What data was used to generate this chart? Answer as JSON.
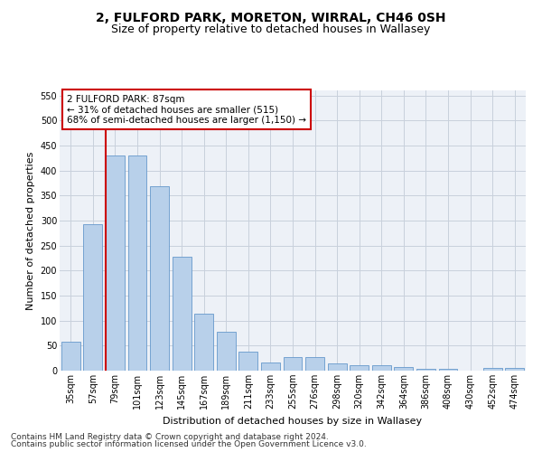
{
  "title": "2, FULFORD PARK, MORETON, WIRRAL, CH46 0SH",
  "subtitle": "Size of property relative to detached houses in Wallasey",
  "xlabel": "Distribution of detached houses by size in Wallasey",
  "ylabel": "Number of detached properties",
  "categories": [
    "35sqm",
    "57sqm",
    "79sqm",
    "101sqm",
    "123sqm",
    "145sqm",
    "167sqm",
    "189sqm",
    "211sqm",
    "233sqm",
    "255sqm",
    "276sqm",
    "298sqm",
    "320sqm",
    "342sqm",
    "364sqm",
    "386sqm",
    "408sqm",
    "430sqm",
    "452sqm",
    "474sqm"
  ],
  "values": [
    57,
    293,
    430,
    430,
    368,
    227,
    113,
    77,
    38,
    17,
    27,
    27,
    14,
    10,
    10,
    7,
    4,
    4,
    0,
    5,
    5
  ],
  "bar_color": "#b8d0ea",
  "bar_edge_color": "#6699cc",
  "highlight_index": 2,
  "highlight_color": "#cc0000",
  "annotation_line1": "2 FULFORD PARK: 87sqm",
  "annotation_line2": "← 31% of detached houses are smaller (515)",
  "annotation_line3": "68% of semi-detached houses are larger (1,150) →",
  "annotation_box_color": "#cc0000",
  "ylim": [
    0,
    560
  ],
  "yticks": [
    0,
    50,
    100,
    150,
    200,
    250,
    300,
    350,
    400,
    450,
    500,
    550
  ],
  "grid_color": "#c8d0dc",
  "background_color": "#edf1f7",
  "footer_line1": "Contains HM Land Registry data © Crown copyright and database right 2024.",
  "footer_line2": "Contains public sector information licensed under the Open Government Licence v3.0.",
  "title_fontsize": 10,
  "subtitle_fontsize": 9,
  "axis_label_fontsize": 8,
  "tick_fontsize": 7,
  "annotation_fontsize": 7.5,
  "footer_fontsize": 6.5
}
